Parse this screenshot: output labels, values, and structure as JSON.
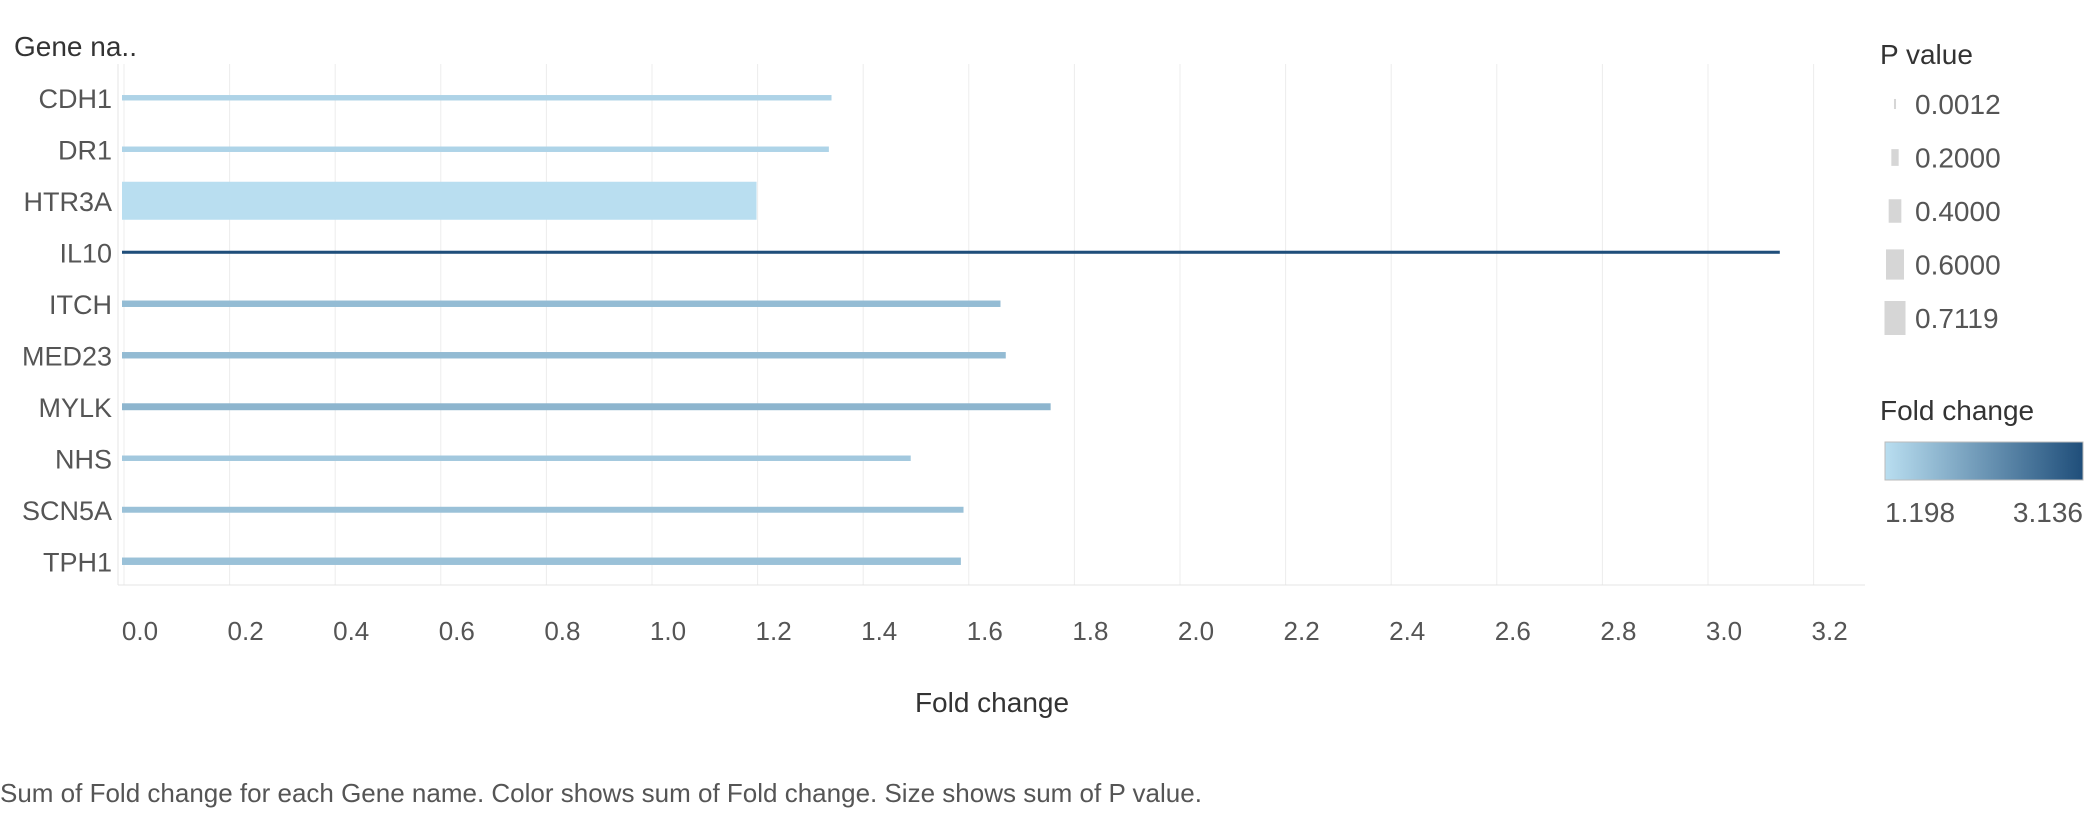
{
  "chart_data": {
    "type": "bar",
    "orientation": "horizontal",
    "row_header": "Gene na..",
    "xlabel": "Fold change",
    "xlim": [
      0,
      3.3
    ],
    "xticks": [
      "0.0",
      "0.2",
      "0.4",
      "0.6",
      "0.8",
      "1.0",
      "1.2",
      "1.4",
      "1.6",
      "1.8",
      "2.0",
      "2.2",
      "2.4",
      "2.6",
      "2.8",
      "3.0",
      "3.2"
    ],
    "grid": true,
    "categories": [
      "CDH1",
      "DR1",
      "HTR3A",
      "IL10",
      "ITCH",
      "MED23",
      "MYLK",
      "NHS",
      "SCN5A",
      "TPH1"
    ],
    "values": [
      1.34,
      1.335,
      1.198,
      3.136,
      1.66,
      1.67,
      1.755,
      1.49,
      1.59,
      1.585
    ],
    "p_values": [
      0.05,
      0.05,
      0.7119,
      0.0012,
      0.07,
      0.07,
      0.08,
      0.05,
      0.06,
      0.09
    ],
    "legend": {
      "size_title": "P value",
      "size_items": [
        "0.0012",
        "0.2000",
        "0.4000",
        "0.6000",
        "0.7119"
      ],
      "color_title": "Fold change",
      "color_min": "1.198",
      "color_max": "3.136",
      "color_low": "#b9def0",
      "color_high": "#1f4e7a"
    },
    "caption": "Sum of Fold change for each Gene name.  Color shows sum of Fold change.  Size shows sum of P value."
  }
}
